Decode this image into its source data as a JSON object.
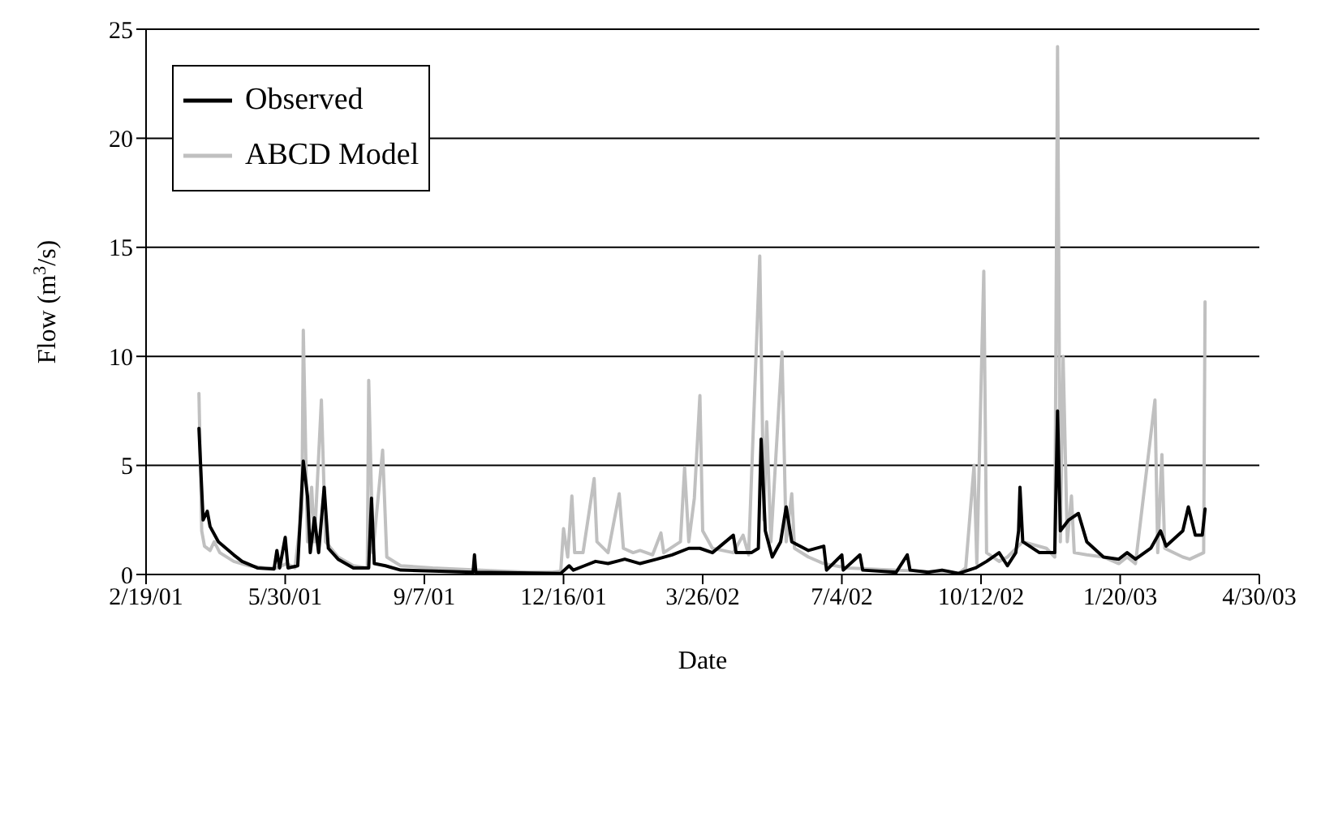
{
  "chart_data": {
    "type": "line",
    "xlabel": "Date",
    "ylabel": "Flow (m$^{3}$/s)",
    "xlim": [
      "2001-02-19",
      "2003-04-30"
    ],
    "xticks": [
      {
        "value": "2001-02-19",
        "label": "2/19/01"
      },
      {
        "value": "2001-05-30",
        "label": "5/30/01"
      },
      {
        "value": "2001-09-07",
        "label": "9/7/01"
      },
      {
        "value": "2001-12-16",
        "label": "12/16/01"
      },
      {
        "value": "2002-03-26",
        "label": "3/26/02"
      },
      {
        "value": "2002-07-04",
        "label": "7/4/02"
      },
      {
        "value": "2002-10-12",
        "label": "10/12/02"
      },
      {
        "value": "2003-01-20",
        "label": "1/20/03"
      },
      {
        "value": "2003-04-30",
        "label": "4/30/03"
      }
    ],
    "ylim": [
      0,
      25
    ],
    "yticks": [
      0,
      5,
      10,
      15,
      20,
      25
    ],
    "grid": "y",
    "legend": "top left",
    "marker": "none",
    "line_style": "solid",
    "series": [
      {
        "name": "Observed",
        "color": "#000000",
        "x": [
          "2001-03-29",
          "2001-04-01",
          "2001-04-04",
          "2001-04-06",
          "2001-04-12",
          "2001-04-23",
          "2001-04-29",
          "2001-05-10",
          "2001-05-22",
          "2001-05-24",
          "2001-05-26",
          "2001-05-30",
          "2001-06-01",
          "2001-06-08",
          "2001-06-12",
          "2001-06-15",
          "2001-06-17",
          "2001-06-20",
          "2001-06-23",
          "2001-06-27",
          "2001-06-30",
          "2001-07-07",
          "2001-07-18",
          "2001-07-29",
          "2001-07-31",
          "2001-08-02",
          "2001-08-10",
          "2001-08-21",
          "2001-10-12",
          "2001-10-13",
          "2001-10-14",
          "2001-12-14",
          "2001-12-20",
          "2001-12-23",
          "2001-12-31",
          "2002-01-08",
          "2002-01-17",
          "2002-01-29",
          "2002-02-09",
          "2002-02-21",
          "2002-03-04",
          "2002-03-16",
          "2002-03-24",
          "2002-04-02",
          "2002-04-17",
          "2002-04-19",
          "2002-04-30",
          "2002-05-05",
          "2002-05-07",
          "2002-05-10",
          "2002-05-15",
          "2002-05-21",
          "2002-05-25",
          "2002-05-29",
          "2002-06-10",
          "2002-06-21",
          "2002-06-23",
          "2002-07-04",
          "2002-07-05",
          "2002-07-17",
          "2002-07-19",
          "2002-08-12",
          "2002-08-20",
          "2002-08-22",
          "2002-09-04",
          "2002-09-14",
          "2002-09-26",
          "2002-10-08",
          "2002-10-16",
          "2002-10-25",
          "2002-10-31",
          "2002-11-06",
          "2002-11-08",
          "2002-11-09",
          "2002-11-11",
          "2002-11-23",
          "2002-12-04",
          "2002-12-06",
          "2002-12-08",
          "2002-12-14",
          "2002-12-21",
          "2002-12-27",
          "2003-01-08",
          "2003-01-19",
          "2003-01-25",
          "2003-01-31",
          "2003-02-11",
          "2003-02-18",
          "2003-02-22",
          "2003-03-06",
          "2003-03-10",
          "2003-03-15",
          "2003-03-20",
          "2003-03-22"
        ],
        "values": [
          6.7,
          2.5,
          2.9,
          2.2,
          1.5,
          0.9,
          0.6,
          0.3,
          0.25,
          1.1,
          0.3,
          1.7,
          0.3,
          0.4,
          5.2,
          3.6,
          1.0,
          2.6,
          1.0,
          4.0,
          1.2,
          0.7,
          0.3,
          0.3,
          3.5,
          0.5,
          0.4,
          0.2,
          0.1,
          0.9,
          0.1,
          0.05,
          0.4,
          0.2,
          0.4,
          0.6,
          0.5,
          0.7,
          0.5,
          0.7,
          0.9,
          1.2,
          1.2,
          1.0,
          1.8,
          1.0,
          1.0,
          1.2,
          6.2,
          2.0,
          0.8,
          1.5,
          3.1,
          1.5,
          1.1,
          1.3,
          0.2,
          0.9,
          0.2,
          0.9,
          0.2,
          0.1,
          0.9,
          0.2,
          0.1,
          0.2,
          0.05,
          0.3,
          0.6,
          1.0,
          0.4,
          1.0,
          2.0,
          4.0,
          1.5,
          1.0,
          1.0,
          7.5,
          2.0,
          2.5,
          2.8,
          1.5,
          0.8,
          0.7,
          1.0,
          0.7,
          1.2,
          2.0,
          1.3,
          2.0,
          3.1,
          1.8,
          1.8,
          3.0
        ]
      },
      {
        "name": "ABCD Model",
        "color": "#c0c0c0",
        "x": [
          "2001-03-29",
          "2001-03-31",
          "2001-04-02",
          "2001-04-06",
          "2001-04-09",
          "2001-04-13",
          "2001-04-23",
          "2001-05-04",
          "2001-05-16",
          "2001-05-24",
          "2001-05-31",
          "2001-06-06",
          "2001-06-11",
          "2001-06-12",
          "2001-06-15",
          "2001-06-18",
          "2001-06-20",
          "2001-06-25",
          "2001-06-28",
          "2001-07-07",
          "2001-07-18",
          "2001-07-28",
          "2001-07-29",
          "2001-08-01",
          "2001-08-08",
          "2001-08-11",
          "2001-08-21",
          "2001-09-13",
          "2001-10-18",
          "2001-11-21",
          "2001-12-08",
          "2001-12-14",
          "2001-12-16",
          "2001-12-19",
          "2001-12-22",
          "2001-12-24",
          "2001-12-30",
          "2002-01-07",
          "2002-01-09",
          "2002-01-17",
          "2002-01-25",
          "2002-01-28",
          "2002-02-04",
          "2002-02-09",
          "2002-02-18",
          "2002-02-24",
          "2002-02-26",
          "2002-03-10",
          "2002-03-13",
          "2002-03-16",
          "2002-03-20",
          "2002-03-24",
          "2002-03-26",
          "2002-04-02",
          "2002-04-17",
          "2002-04-24",
          "2002-04-28",
          "2002-05-06",
          "2002-05-09",
          "2002-05-11",
          "2002-05-14",
          "2002-05-22",
          "2002-05-25",
          "2002-05-29",
          "2002-05-31",
          "2002-06-10",
          "2002-06-21",
          "2002-07-08",
          "2002-08-12",
          "2002-09-15",
          "2002-09-26",
          "2002-10-01",
          "2002-10-07",
          "2002-10-09",
          "2002-10-14",
          "2002-10-16",
          "2002-10-25",
          "2002-10-31",
          "2002-11-11",
          "2002-11-28",
          "2002-12-04",
          "2002-12-06",
          "2002-12-08",
          "2002-12-10",
          "2002-12-13",
          "2002-12-16",
          "2002-12-18",
          "2002-12-27",
          "2003-01-08",
          "2003-01-19",
          "2003-01-25",
          "2003-01-31",
          "2003-02-14",
          "2003-02-16",
          "2003-02-19",
          "2003-02-21",
          "2003-03-06",
          "2003-03-11",
          "2003-03-21",
          "2003-03-22"
        ],
        "values": [
          8.3,
          2.0,
          1.3,
          1.1,
          1.5,
          1.0,
          0.6,
          0.4,
          0.3,
          0.3,
          0.5,
          0.3,
          3.0,
          11.2,
          1.5,
          4.0,
          1.5,
          8.0,
          1.5,
          0.8,
          0.4,
          0.3,
          8.9,
          1.0,
          5.7,
          0.8,
          0.4,
          0.3,
          0.2,
          0.1,
          0.1,
          0.15,
          2.1,
          0.8,
          3.6,
          1.0,
          1.0,
          4.4,
          1.5,
          1.0,
          3.7,
          1.2,
          1.0,
          1.1,
          0.9,
          1.9,
          1.0,
          1.5,
          4.9,
          1.5,
          3.5,
          8.2,
          2.0,
          1.2,
          1.0,
          1.8,
          0.9,
          14.6,
          2.5,
          7.0,
          1.5,
          10.2,
          1.5,
          3.7,
          1.2,
          0.8,
          0.5,
          0.3,
          0.2,
          0.1,
          0.05,
          0.3,
          5.0,
          0.5,
          13.9,
          1.0,
          0.6,
          0.8,
          1.5,
          1.2,
          0.8,
          24.2,
          1.5,
          10.0,
          1.5,
          3.6,
          1.0,
          0.9,
          0.8,
          0.5,
          0.8,
          0.5,
          8.0,
          1.0,
          5.5,
          1.2,
          0.8,
          0.7,
          1.0,
          12.5
        ]
      }
    ]
  }
}
